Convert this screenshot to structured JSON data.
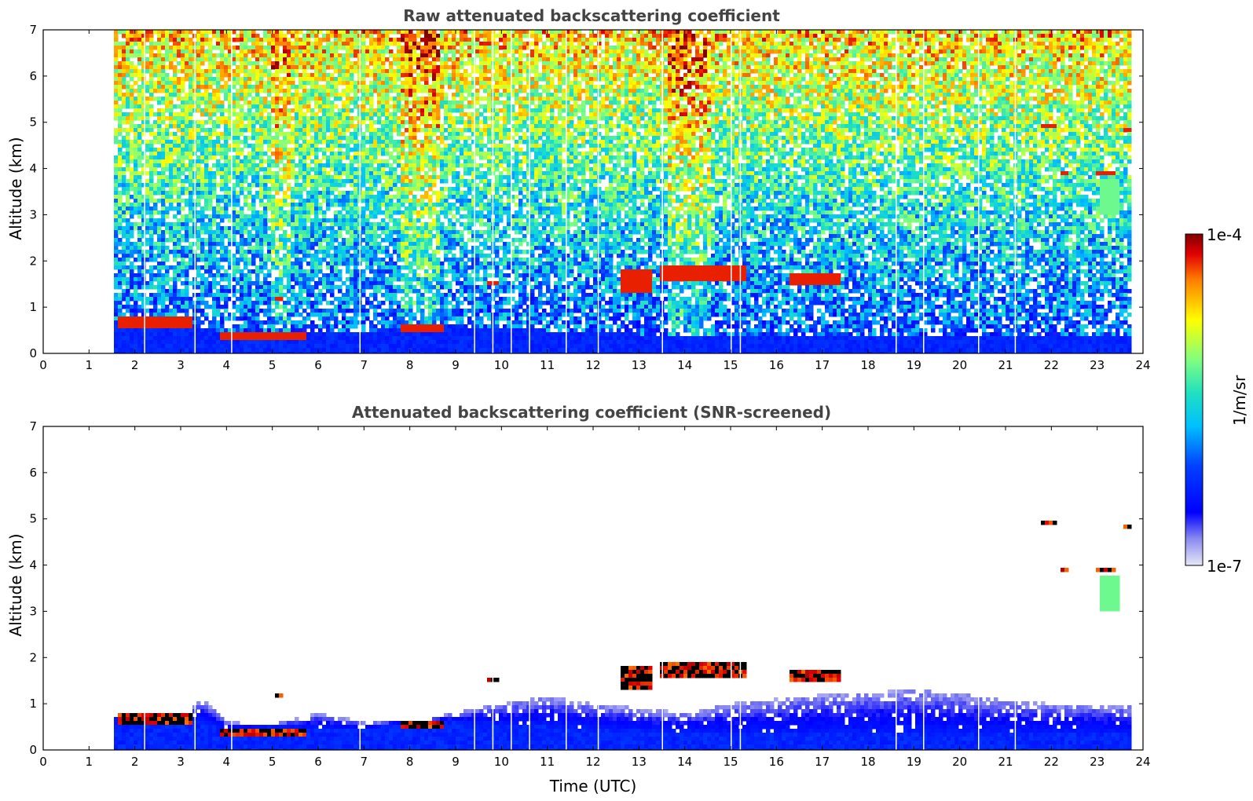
{
  "chart_data": [
    {
      "type": "heatmap",
      "title": "Raw attenuated backscattering coefficient",
      "xlabel": "",
      "ylabel": "Altitude (km)",
      "xlim": [
        0,
        24
      ],
      "ylim": [
        0,
        7
      ],
      "xticks": [
        "0",
        "1",
        "2",
        "3",
        "4",
        "5",
        "6",
        "7",
        "8",
        "9",
        "10",
        "11",
        "12",
        "13",
        "14",
        "15",
        "16",
        "17",
        "18",
        "19",
        "20",
        "21",
        "22",
        "23",
        "24"
      ],
      "yticks": [
        "0",
        "1",
        "2",
        "3",
        "4",
        "5",
        "6",
        "7"
      ],
      "data_start_time": 1.55,
      "data_end_time": 23.75,
      "boundary_layer_top_km": [
        [
          1.6,
          0.75
        ],
        [
          2.2,
          0.78
        ],
        [
          3.2,
          0.65
        ],
        [
          4.0,
          0.45
        ],
        [
          5.0,
          0.5
        ],
        [
          6.0,
          0.45
        ],
        [
          7.0,
          0.45
        ],
        [
          8.0,
          0.6
        ],
        [
          9.0,
          0.6
        ],
        [
          12.0,
          0.45
        ],
        [
          15.0,
          0.35
        ],
        [
          18.0,
          0.35
        ],
        [
          21.0,
          0.35
        ],
        [
          23.75,
          0.35
        ]
      ],
      "clouds": [
        {
          "t": [
            1.6,
            3.3
          ],
          "alt": [
            0.58,
            0.78
          ]
        },
        {
          "t": [
            3.9,
            5.7
          ],
          "alt": [
            0.33,
            0.48
          ]
        },
        {
          "t": [
            7.8,
            8.7
          ],
          "alt": [
            0.5,
            0.6
          ]
        },
        {
          "t": [
            9.7,
            9.9
          ],
          "alt": [
            1.5,
            1.6
          ]
        },
        {
          "t": [
            5.05,
            5.2
          ],
          "alt": [
            1.15,
            1.25
          ]
        },
        {
          "t": [
            12.6,
            13.3
          ],
          "alt": [
            1.3,
            1.8
          ]
        },
        {
          "t": [
            13.5,
            15.3
          ],
          "alt": [
            1.55,
            1.9
          ]
        },
        {
          "t": [
            16.3,
            17.4
          ],
          "alt": [
            1.45,
            1.7
          ]
        },
        {
          "t": [
            21.8,
            22.1
          ],
          "alt": [
            4.9,
            5.0
          ]
        },
        {
          "t": [
            22.2,
            22.4
          ],
          "alt": [
            3.82,
            3.92
          ]
        },
        {
          "t": [
            23.0,
            23.4
          ],
          "alt": [
            3.82,
            3.92
          ]
        },
        {
          "t": [
            23.6,
            23.75
          ],
          "alt": [
            4.75,
            4.85
          ]
        },
        {
          "t": [
            23.05,
            23.45
          ],
          "alt": [
            3.0,
            3.8
          ],
          "moderate": true
        }
      ]
    },
    {
      "type": "heatmap",
      "title": "Attenuated backscattering coefficient (SNR-screened)",
      "xlabel": "Time (UTC)",
      "ylabel": "Altitude (km)",
      "xlim": [
        0,
        24
      ],
      "ylim": [
        0,
        7
      ],
      "xticks": [
        "0",
        "1",
        "2",
        "3",
        "4",
        "5",
        "6",
        "7",
        "8",
        "9",
        "10",
        "11",
        "12",
        "13",
        "14",
        "15",
        "16",
        "17",
        "18",
        "19",
        "20",
        "21",
        "22",
        "23",
        "24"
      ],
      "yticks": [
        "0",
        "1",
        "2",
        "3",
        "4",
        "5",
        "6",
        "7"
      ],
      "screened_top_km": [
        [
          1.6,
          0.75
        ],
        [
          3.0,
          0.75
        ],
        [
          3.5,
          1.1
        ],
        [
          4.0,
          0.6
        ],
        [
          5.0,
          0.55
        ],
        [
          6.0,
          0.8
        ],
        [
          7.0,
          0.6
        ],
        [
          8.0,
          0.6
        ],
        [
          9.0,
          0.8
        ],
        [
          10.0,
          1.0
        ],
        [
          11.0,
          1.15
        ],
        [
          12.0,
          1.0
        ],
        [
          13.0,
          0.9
        ],
        [
          14.0,
          0.8
        ],
        [
          15.0,
          1.0
        ],
        [
          16.0,
          1.1
        ],
        [
          17.0,
          1.2
        ],
        [
          18.0,
          1.25
        ],
        [
          19.0,
          1.3
        ],
        [
          20.0,
          1.2
        ],
        [
          21.0,
          1.1
        ],
        [
          22.0,
          1.0
        ],
        [
          23.0,
          1.0
        ],
        [
          23.75,
          0.95
        ]
      ]
    }
  ],
  "colorbar": {
    "label": "1/m/sr",
    "max_label": "1e-4",
    "min_label": "1e-7",
    "scale": "log",
    "colormap": "jet with light-blue to white low end"
  },
  "colors": {
    "title": "#444444",
    "background": "#ffffff"
  }
}
